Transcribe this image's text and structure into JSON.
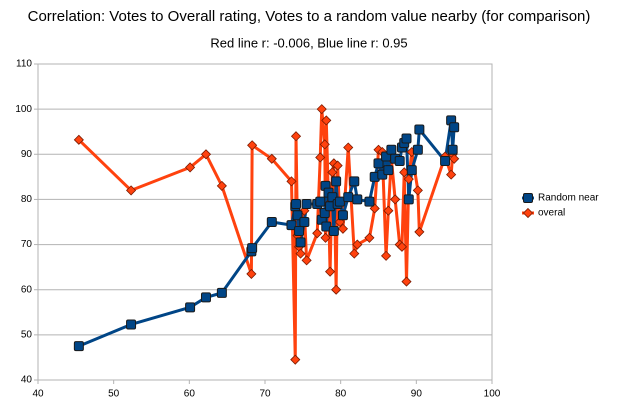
{
  "chart_data": {
    "type": "line",
    "title": "Correlation: Votes to Overall rating, Votes to a random value nearby (for comparison)",
    "subtitle": "Red line r: -0.006, Blue line r: 0.95",
    "x": [
      45.4,
      52.3,
      60.1,
      62.2,
      64.3,
      68.2,
      68.3,
      70.9,
      73.5,
      74.0,
      74.1,
      74.3,
      74.5,
      74.7,
      75.2,
      75.5,
      76.9,
      77.3,
      77.5,
      77.9,
      78.0,
      78.1,
      78.4,
      78.6,
      78.9,
      79.1,
      79.4,
      79.6,
      79.9,
      80.3,
      81.0,
      81.8,
      82.2,
      83.8,
      84.5,
      85.0,
      85.5,
      86.0,
      86.3,
      86.7,
      87.2,
      87.8,
      88.1,
      88.4,
      88.7,
      89.0,
      89.4,
      90.2,
      90.4,
      93.8,
      94.6,
      94.8,
      95.0
    ],
    "series": [
      {
        "name": "Random near",
        "color": "#004586",
        "marker": "square",
        "values": [
          47.5,
          52.3,
          56.1,
          58.3,
          59.3,
          68.5,
          69.2,
          75,
          74.3,
          78.5,
          79,
          76.5,
          73,
          70.5,
          75,
          79,
          79,
          79.5,
          75.5,
          77,
          83,
          74,
          81.5,
          78.5,
          80.5,
          73,
          84,
          79,
          79.5,
          76.5,
          80.5,
          84,
          80,
          79.5,
          85,
          88,
          85.5,
          89.5,
          86.5,
          91,
          89,
          88.5,
          91.5,
          92.5,
          93.5,
          80,
          86.5,
          91,
          95.5,
          88.5,
          97.5,
          91,
          96
        ]
      },
      {
        "name": "overal",
        "color": "#ff420e",
        "marker": "diamond",
        "values": [
          93.2,
          82,
          87.1,
          90,
          83,
          63.5,
          92,
          89,
          84,
          44.5,
          94,
          72,
          69.5,
          68,
          77.5,
          66.5,
          72.5,
          89.3,
          100,
          92.2,
          71.5,
          97.5,
          79,
          64,
          86,
          88,
          60,
          87.5,
          75,
          73.5,
          91.5,
          68,
          70,
          71.5,
          78,
          91,
          90.5,
          67.5,
          77.5,
          89,
          80,
          70,
          69.5,
          86,
          61.8,
          84.5,
          90.5,
          82,
          72.8,
          89.5,
          85.5,
          90,
          89
        ]
      }
    ],
    "xlim": [
      40,
      100
    ],
    "xticks": [
      40,
      50,
      60,
      70,
      80,
      90,
      100
    ],
    "ylim": [
      40,
      110
    ],
    "yticks": [
      40,
      50,
      60,
      70,
      80,
      90,
      100,
      110
    ],
    "grid": true,
    "legend": "right"
  }
}
